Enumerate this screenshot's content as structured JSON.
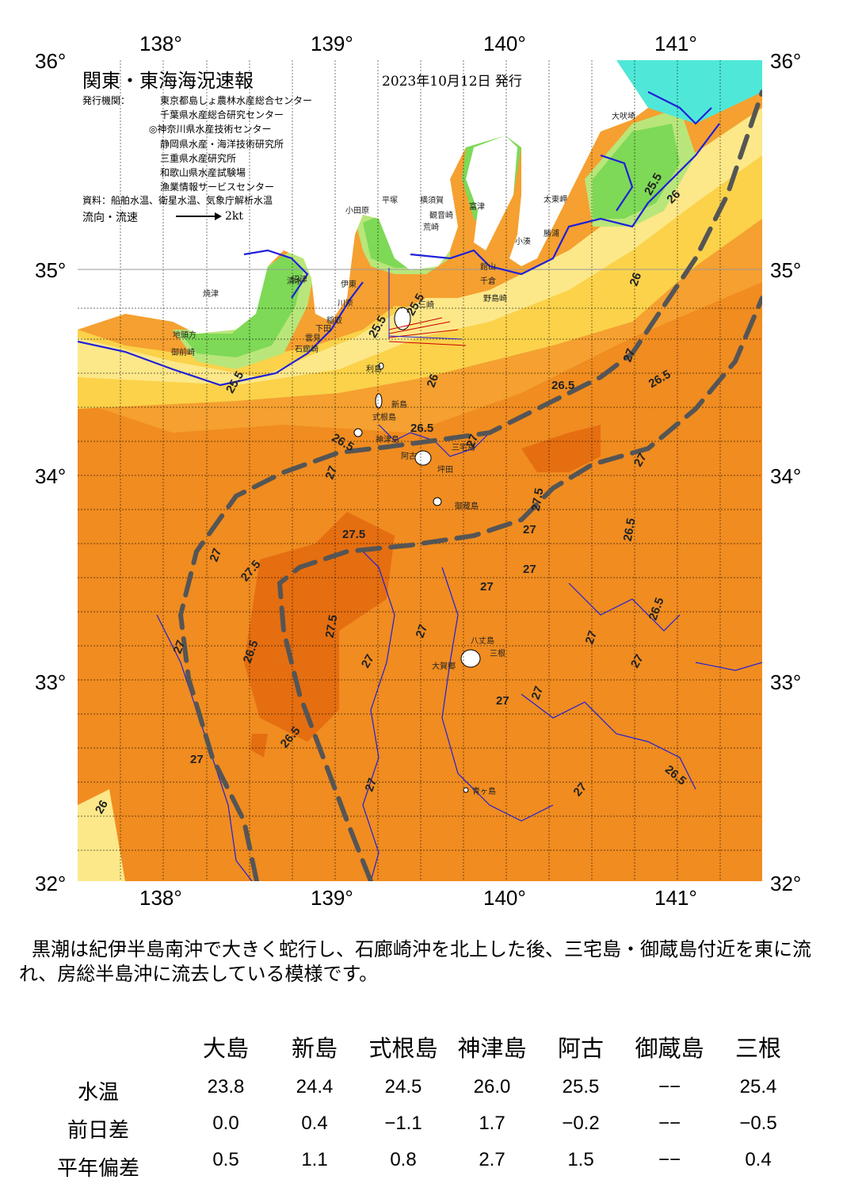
{
  "map": {
    "title": "関東・東海海況速報",
    "date": "2023年10月12日 発行",
    "issuer_label": "発行機関：",
    "issuers": [
      "東京都島しょ農林水産総合センター",
      "千葉県水産総合研究センター",
      "◎神奈川県水産技術センター",
      "静岡県水産・海洋技術研究所",
      "三重県水産研究所",
      "和歌山県水産試験場",
      "漁業情報サービスセンター"
    ],
    "sources": "資料：船舶水温、衛星水温、気象庁解析水温",
    "flow_label": "流向・流速",
    "flow_scale": "2kt",
    "lon_ticks": [
      "138°",
      "139°",
      "140°",
      "141°"
    ],
    "lat_ticks": [
      "36°",
      "35°",
      "34°",
      "33°",
      "32°"
    ],
    "places": [
      {
        "name": "大吠埼"
      },
      {
        "name": "太東岬"
      },
      {
        "name": "勝浦"
      },
      {
        "name": "小湊"
      },
      {
        "name": "館山"
      },
      {
        "name": "千倉"
      },
      {
        "name": "野島崎"
      },
      {
        "name": "富津"
      },
      {
        "name": "横須賀"
      },
      {
        "name": "平塚"
      },
      {
        "name": "観音崎"
      },
      {
        "name": "荒崎"
      },
      {
        "name": "三崎"
      },
      {
        "name": "小田原"
      },
      {
        "name": "伊東"
      },
      {
        "name": "川奈"
      },
      {
        "name": "稲取"
      },
      {
        "name": "下田"
      },
      {
        "name": "石廊崎"
      },
      {
        "name": "雲見"
      },
      {
        "name": "清水"
      },
      {
        "name": "沼津"
      },
      {
        "name": "焼津"
      },
      {
        "name": "御前崎"
      },
      {
        "name": "地頭方"
      },
      {
        "name": "利島"
      },
      {
        "name": "新島"
      },
      {
        "name": "式根島"
      },
      {
        "name": "神津島"
      },
      {
        "name": "阿古"
      },
      {
        "name": "三宅島"
      },
      {
        "name": "坪田"
      },
      {
        "name": "御蔵島"
      },
      {
        "name": "八丈島"
      },
      {
        "name": "大賀郷"
      },
      {
        "name": "三根"
      },
      {
        "name": "青ヶ島"
      }
    ],
    "contour_labels": [
      "25.5",
      "25.5",
      "26",
      "26.5",
      "26.5",
      "27",
      "27",
      "27",
      "27.5",
      "27.5",
      "27.5",
      "27",
      "27",
      "26.5",
      "26",
      "27",
      "26.5",
      "26",
      "25.5",
      "26.5",
      "27",
      "27.5",
      "27",
      "27",
      "27",
      "27",
      "26.5",
      "27",
      "27",
      "27",
      "27",
      "27",
      "26.5",
      "26.5",
      "27",
      "26.5",
      "27",
      "26",
      "25.5"
    ]
  },
  "summary": "黒潮は紀伊半島南沖で大きく蛇行し、石廊崎沖を北上した後、三宅島・御蔵島付近を東に流れ、房総半島沖に流去している模様です。",
  "table": {
    "columns": [
      "大島",
      "新島",
      "式根島",
      "神津島",
      "阿古",
      "御蔵島",
      "三根"
    ],
    "rows": [
      {
        "label": "水温",
        "values": [
          "23.8",
          "24.4",
          "24.5",
          "26.0",
          "25.5",
          "−−",
          "25.4"
        ]
      },
      {
        "label": "前日差",
        "values": [
          "0.0",
          "0.4",
          "−1.1",
          "1.7",
          "−0.2",
          "−−",
          "−0.5"
        ]
      },
      {
        "label": "平年偏差",
        "values": [
          "0.5",
          "1.1",
          "0.8",
          "2.7",
          "1.5",
          "−−",
          "0.4"
        ]
      }
    ]
  },
  "colors": {
    "warm_orange": "#f5a030",
    "mid_orange": "#f08c20",
    "deep_orange": "#e56e10",
    "yellow": "#fbd24a",
    "pale_yellow": "#fce889",
    "green": "#7ed957",
    "light_green": "#b9e67a",
    "cyan": "#4fe8d8",
    "land": "#ffffff",
    "kuroshio_axis": "#555555",
    "isotherm_blue": "#2020d8"
  }
}
